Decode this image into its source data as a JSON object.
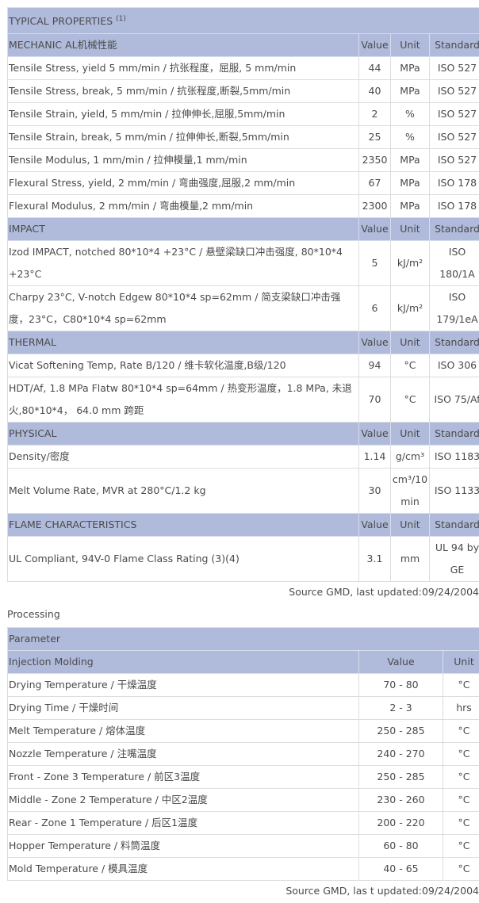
{
  "properties": {
    "title": "TYPICAL PROPERTIES",
    "title_note": "(1)",
    "sections": [
      {
        "name": "MECHANIC AL机械性能",
        "cols": [
          "Value",
          "Unit",
          "Standard"
        ],
        "rows": [
          [
            "Tensile Stress, yield 5 mm/min / 抗张程度，屈服, 5 mm/min",
            "44",
            "MPa",
            "ISO 527"
          ],
          [
            "Tensile Stress, break, 5 mm/min / 抗张程度,断裂,5mm/min",
            "40",
            "MPa",
            "ISO 527"
          ],
          [
            "Tensile Strain, yield, 5 mm/min / 拉伸伸长,屈服,5mm/min",
            "2",
            "%",
            "ISO 527"
          ],
          [
            "Tensile Strain, break, 5 mm/min / 拉伸伸长,断裂,5mm/min",
            "25",
            "%",
            "ISO 527"
          ],
          [
            "Tensile Modulus, 1 mm/min / 拉伸模量,1 mm/min",
            "2350",
            "MPa",
            "ISO 527"
          ],
          [
            "Flexural Stress, yield, 2 mm/min / 弯曲强度,屈服,2 mm/min",
            "67",
            "MPa",
            "ISO 178"
          ],
          [
            "Flexural Modulus, 2 mm/min / 弯曲模量,2 mm/min",
            "2300",
            "MPa",
            "ISO 178"
          ]
        ]
      },
      {
        "name": "IMPACT",
        "cols": [
          "Value",
          "Unit",
          "Standard"
        ],
        "rows": [
          [
            "Izod IMPACT, notched 80*10*4 +23°C / 悬壁梁缺口冲击强度, 80*10*4 +23°C",
            "5",
            "kJ/m²",
            "ISO 180/1A"
          ],
          [
            "Charpy 23°C, V-notch Edgew 80*10*4 sp=62mm / 简支梁缺口冲击强度，23°C，C80*10*4 sp=62mm",
            "6",
            "kJ/m²",
            "ISO 179/1eA"
          ]
        ]
      },
      {
        "name": "THERMAL",
        "cols": [
          "Value",
          "Unit",
          "Standard"
        ],
        "rows": [
          [
            "Vicat Softening Temp, Rate B/120 / 维卡软化温度,B级/120",
            "94",
            "°C",
            "ISO 306"
          ],
          [
            "HDT/Af, 1.8 MPa Flatw 80*10*4 sp=64mm / 热变形温度，1.8 MPa, 未退火,80*10*4， 64.0 mm 跨距",
            "70",
            "°C",
            "ISO 75/Af"
          ]
        ]
      },
      {
        "name": "PHYSICAL",
        "cols": [
          "Value",
          "Unit",
          "Standard"
        ],
        "rows": [
          [
            "Density/密度",
            "1.14",
            "g/cm³",
            "ISO 1183"
          ],
          [
            "Melt Volume Rate, MVR at 280°C/1.2 kg",
            "30",
            "cm³/10 min",
            "ISO 1133"
          ]
        ]
      },
      {
        "name": "FLAME CHARACTERISTICS",
        "cols": [
          "Value",
          "Unit",
          "Standard"
        ],
        "rows": [
          [
            "UL Compliant, 94V-0 Flame Class Rating (3)(4)",
            "3.1",
            "mm",
            "UL 94 by GE"
          ]
        ]
      }
    ],
    "source": "Source GMD, last updated:09/24/2004"
  },
  "processing": {
    "label": "Processing",
    "title": "Parameter",
    "section": "Injection Molding",
    "cols": [
      "Value",
      "Unit"
    ],
    "rows": [
      [
        "Drying Temperature / 干燥温度",
        "70 - 80",
        "°C"
      ],
      [
        "Drying Time / 干燥时间",
        "2 - 3",
        "hrs"
      ],
      [
        "Melt Temperature / 熔体温度",
        "250 - 285",
        "°C"
      ],
      [
        "Nozzle Temperature / 注嘴温度",
        "240 - 270",
        "°C"
      ],
      [
        "Front - Zone 3 Temperature / 前区3温度",
        "250 - 285",
        "°C"
      ],
      [
        "Middle - Zone 2 Temperature / 中区2温度",
        "230 - 260",
        "°C"
      ],
      [
        "Rear - Zone 1 Temperature / 后区1温度",
        "200 - 220",
        "°C"
      ],
      [
        "Hopper Temperature / 料筒温度",
        "60 - 80",
        "°C"
      ],
      [
        "Mold Temperature / 模具温度",
        "40 - 65",
        "°C"
      ]
    ],
    "source": "Source GMD, las t updated:09/24/2004"
  },
  "colors": {
    "header_bg": "#b0bbdc"
  }
}
